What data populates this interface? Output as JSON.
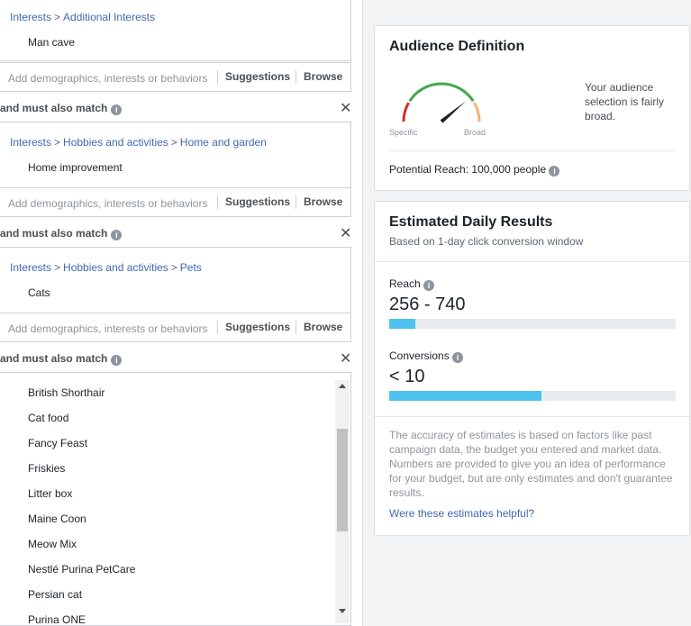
{
  "targeting": {
    "groups": [
      {
        "crumbs": [
          "Interests",
          "Additional Interests"
        ],
        "items": [
          "Man cave"
        ]
      },
      {
        "crumbs": [
          "Interests",
          "Hobbies and activities",
          "Home and garden"
        ],
        "items": [
          "Home improvement"
        ]
      },
      {
        "crumbs": [
          "Interests",
          "Hobbies and activities",
          "Pets"
        ],
        "items": [
          "Cats"
        ]
      }
    ],
    "add_placeholder": "Add demographics, interests or behaviors",
    "suggestions_label": "Suggestions",
    "browse_label": "Browse",
    "match_label": "and must also match",
    "close_glyph": "✕",
    "breadcrumb_separator": ">",
    "dropdown_items": [
      "British Shorthair",
      "Cat food",
      "Fancy Feast",
      "Friskies",
      "Litter box",
      "Maine Coon",
      "Meow Mix",
      "Nestlé Purina PetCare",
      "Persian cat",
      "Purina ONE"
    ]
  },
  "audience": {
    "title": "Audience Definition",
    "specific_label": "Specific",
    "broad_label": "Broad",
    "description": "Your audience selection is fairly broad.",
    "potential_reach": "Potential Reach: 100,000 people"
  },
  "estimates": {
    "title": "Estimated Daily Results",
    "subtitle": "Based on 1-day click conversion window",
    "reach_label": "Reach",
    "reach_value": "256 - 740",
    "reach_fill": 0.09,
    "conversions_label": "Conversions",
    "conversions_value": "< 10",
    "conversions_fill": 0.53,
    "note": "The accuracy of estimates is based on factors like past campaign data, the budget you entered and market data. Numbers are provided to give you an idea of performance for your budget, but are only estimates and don't guarantee results.",
    "helpful_link": "Were these estimates helpful?"
  },
  "colors": {
    "link": "#4267b2",
    "bar_fill": "#4ec2ee",
    "gauge_red": "#d0312d",
    "gauge_green": "#42a847",
    "gauge_orange": "#f5b27a"
  }
}
